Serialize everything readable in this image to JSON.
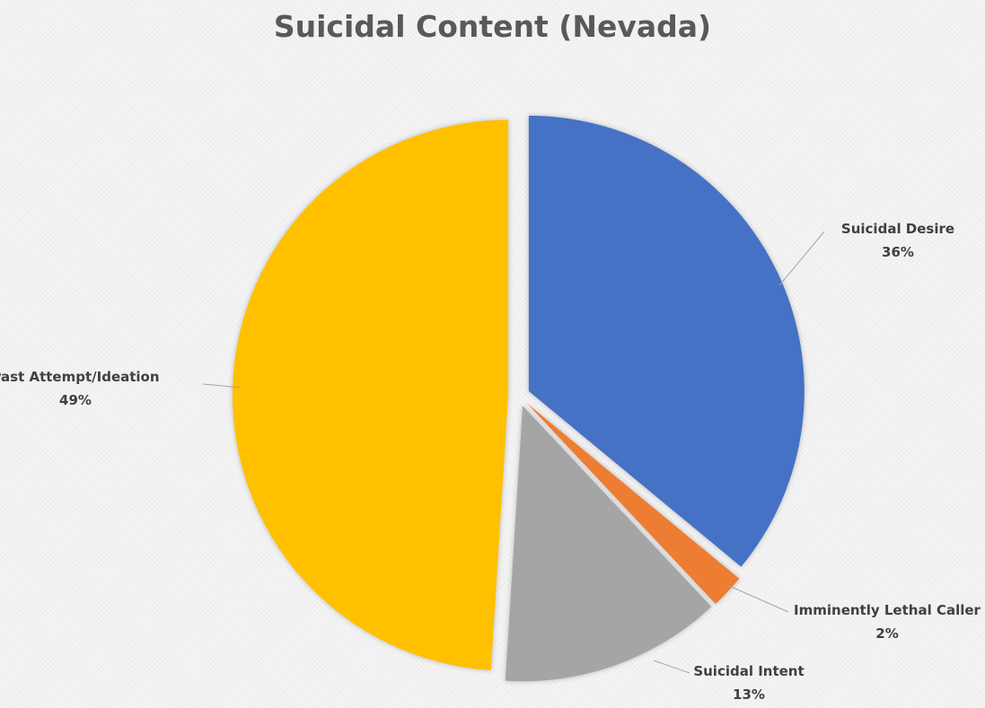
{
  "chart_data": {
    "type": "pie",
    "title": "Suicidal Content (Nevada)",
    "slices": [
      {
        "label": "Suicidal Desire",
        "value": 36,
        "value_label": "36%",
        "color": "#4472c4"
      },
      {
        "label": "Imminently Lethal Caller",
        "value": 2,
        "value_label": "2%",
        "color": "#ed7d31"
      },
      {
        "label": "Suicidal Intent",
        "value": 13,
        "value_label": "13%",
        "color": "#a5a5a5"
      },
      {
        "label": "Past Attempt/Ideation",
        "value": 49,
        "value_label": "49%",
        "color": "#ffc000"
      }
    ],
    "legend": "none",
    "exploded": true
  }
}
